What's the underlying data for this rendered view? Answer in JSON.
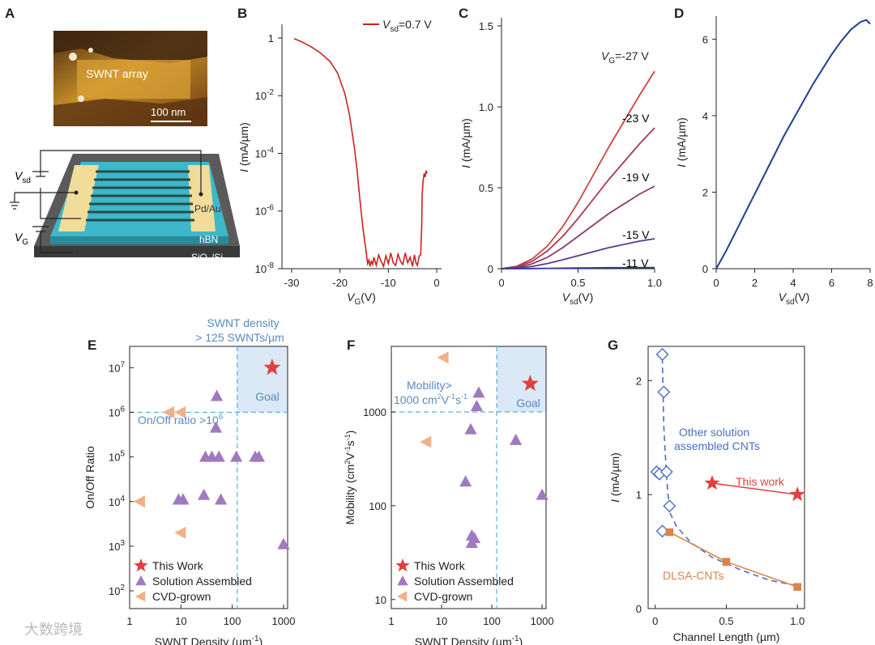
{
  "figure": {
    "panel_labels": [
      "A",
      "B",
      "C",
      "D",
      "E",
      "F",
      "G"
    ],
    "watermark": "大数跨境"
  },
  "panel_a": {
    "afm_label": "SWNT array",
    "scale_bar": "100 nm",
    "labels": {
      "vsd": "V",
      "vsd_sub": "sd",
      "vg": "V",
      "vg_sub": "G",
      "pdau": "Pd/Au",
      "hbn": "hBN",
      "sio2": "SiO",
      "sio2_sub": "2",
      "sio2_tail": "/Si"
    }
  },
  "chart_data": [
    {
      "panel": "B",
      "type": "line",
      "xlabel": "V",
      "xlabel_sub": "G",
      "xlabel_unit": "(V)",
      "ylabel": "I (mA/µm)",
      "scale_y": "log",
      "xlim": [
        -32,
        1
      ],
      "ylim": [
        1e-08,
        3
      ],
      "x_ticks": [
        "-30",
        "-20",
        "-10",
        "0"
      ],
      "y_ticks": [
        {
          "base": "1",
          "exp": ""
        },
        {
          "base": "10",
          "exp": "-2"
        },
        {
          "base": "10",
          "exp": "-4"
        },
        {
          "base": "10",
          "exp": "-6"
        },
        {
          "base": "10",
          "exp": "-8"
        }
      ],
      "legend": "V",
      "legend_sub": "sd",
      "legend_val": "=0.7 V",
      "color": "#cc2222",
      "x": [
        -29.5,
        -28,
        -26,
        -24,
        -22,
        -20.5,
        -19,
        -18,
        -17,
        -16.5,
        -16,
        -15.5,
        -15,
        -14.6,
        -14.3,
        -14,
        -13.8,
        -13.5,
        -13.2,
        -13,
        -12.5,
        -12,
        -11.5,
        -11,
        -10.5,
        -10,
        -9.5,
        -9,
        -8.5,
        -8,
        -7.5,
        -7,
        -6.5,
        -6,
        -5.5,
        -5,
        -4.6,
        -4.3,
        -4,
        -3.6,
        -3.3,
        -3.1,
        -3,
        -2.8,
        -2.6,
        -2.4,
        -2.2,
        -2
      ],
      "y": [
        0.95,
        0.75,
        0.5,
        0.3,
        0.15,
        0.06,
        0.012,
        0.002,
        0.00015,
        3e-05,
        4e-06,
        6e-07,
        1.2e-07,
        4e-08,
        1.5e-08,
        2e-08,
        1.2e-08,
        1.8e-08,
        1.4e-08,
        2.5e-08,
        1.3e-08,
        3e-08,
        1.8e-08,
        1.2e-08,
        2.8e-08,
        1.5e-08,
        3.5e-08,
        1.6e-08,
        1.3e-08,
        3.2e-08,
        1.8e-08,
        1.4e-08,
        3.5e-08,
        1.6e-08,
        2.5e-08,
        1.2e-08,
        3e-08,
        1.6e-08,
        1.3e-08,
        2.8e-08,
        3e-08,
        3e-07,
        4e-06,
        1.2e-05,
        2e-05,
        1.5e-05,
        2.5e-05,
        2e-05
      ]
    },
    {
      "panel": "C",
      "type": "line",
      "xlabel": "V",
      "xlabel_sub": "sd",
      "xlabel_unit": "(V)",
      "ylabel": "I (mA/µm)",
      "xlim": [
        0,
        1.0
      ],
      "ylim": [
        0,
        1.55
      ],
      "x_ticks": [
        "0",
        "0.5",
        "1.0"
      ],
      "y_ticks": [
        "0",
        "0.5",
        "1.0",
        "1.5"
      ],
      "x": [
        0,
        0.1,
        0.2,
        0.3,
        0.4,
        0.5,
        0.6,
        0.7,
        0.8,
        0.9,
        1.0
      ],
      "series": [
        {
          "name": "V",
          "name_sub": "G",
          "name_val": "=-27 V",
          "color": "#cc4444",
          "values": [
            0,
            0.015,
            0.06,
            0.14,
            0.26,
            0.41,
            0.58,
            0.75,
            0.91,
            1.07,
            1.22
          ]
        },
        {
          "name": "-23 V",
          "color": "#a83a55",
          "values": [
            0,
            0.012,
            0.045,
            0.11,
            0.2,
            0.31,
            0.43,
            0.55,
            0.66,
            0.77,
            0.87
          ]
        },
        {
          "name": "-19 V",
          "color": "#8a3a6e",
          "values": [
            0,
            0.008,
            0.03,
            0.07,
            0.13,
            0.2,
            0.27,
            0.34,
            0.4,
            0.46,
            0.51
          ]
        },
        {
          "name": "-15 V",
          "color": "#5c3a8c",
          "values": [
            0,
            0.004,
            0.014,
            0.032,
            0.055,
            0.08,
            0.105,
            0.13,
            0.15,
            0.17,
            0.185
          ]
        },
        {
          "name": "-11 V",
          "color": "#2a3a96",
          "values": [
            0,
            0,
            0.001,
            0.002,
            0.003,
            0.004,
            0.005,
            0.006,
            0.006,
            0.007,
            0.007
          ]
        }
      ]
    },
    {
      "panel": "D",
      "type": "line",
      "xlabel": "V",
      "xlabel_sub": "sd",
      "xlabel_unit": "(V)",
      "ylabel": "I (mA/µm)",
      "xlim": [
        0,
        8
      ],
      "ylim": [
        0,
        6.6
      ],
      "x_ticks": [
        "0",
        "2",
        "4",
        "6",
        "8"
      ],
      "y_ticks": [
        "0",
        "2",
        "4",
        "6"
      ],
      "color": "#1f3f8f",
      "x": [
        0,
        0.5,
        1,
        1.5,
        2,
        2.5,
        3,
        3.5,
        4,
        4.5,
        5,
        5.5,
        6,
        6.5,
        7,
        7.5,
        7.8,
        8
      ],
      "y": [
        0,
        0.45,
        0.95,
        1.45,
        1.95,
        2.45,
        2.95,
        3.45,
        3.9,
        4.35,
        4.8,
        5.2,
        5.6,
        5.95,
        6.25,
        6.45,
        6.5,
        6.4
      ]
    },
    {
      "panel": "E",
      "type": "scatter",
      "xlabel": "SWNT Density (µm",
      "xlabel_sup": "-1",
      "xlabel_tail": ")",
      "ylabel": "On/Off Ratio",
      "scale_x": "log",
      "scale_y": "log",
      "xlim": [
        1,
        1200
      ],
      "ylim": [
        40,
        30000000
      ],
      "x_ticks": [
        "1",
        "10",
        "100",
        "1000"
      ],
      "y_ticks": [
        {
          "base": "10",
          "exp": "2"
        },
        {
          "base": "10",
          "exp": "3"
        },
        {
          "base": "10",
          "exp": "4"
        },
        {
          "base": "10",
          "exp": "5"
        },
        {
          "base": "10",
          "exp": "6"
        },
        {
          "base": "10",
          "exp": "7"
        }
      ],
      "threshold_x": 125,
      "threshold_y": 1000000,
      "annotations": {
        "density": "SWNT density",
        "density2": "> 125 SWNTs/µm",
        "ratio": "On/Off ratio >10",
        "ratio_sup": "6",
        "goal": "Goal"
      },
      "series": [
        {
          "name": "This Work",
          "marker": "star",
          "color": "#e04040",
          "x": [
            600
          ],
          "y": [
            10000000
          ]
        },
        {
          "name": "Solution Assembled",
          "marker": "triangle-up",
          "color": "#a07ac0",
          "x": [
            50,
            48,
            30,
            40,
            55,
            120,
            280,
            330,
            9,
            11,
            28,
            60,
            1000
          ],
          "y": [
            2300000,
            450000,
            100000,
            100000,
            100000,
            100000,
            100000,
            100000,
            11000,
            11000,
            14000,
            11000,
            1100
          ]
        },
        {
          "name": "CVD-grown",
          "marker": "triangle-left",
          "color": "#f0b08a",
          "x": [
            6,
            10,
            1.6,
            10
          ],
          "y": [
            1000000,
            1000000,
            10000,
            2000
          ]
        }
      ]
    },
    {
      "panel": "F",
      "type": "scatter",
      "xlabel": "SWNT Density (µm",
      "xlabel_sup": "-1",
      "xlabel_tail": ")",
      "ylabel": "Mobility (cm",
      "scale_x": "log",
      "scale_y": "log",
      "xlim": [
        1,
        1200
      ],
      "ylim": [
        8,
        5000
      ],
      "x_ticks": [
        "1",
        "10",
        "100",
        "1000"
      ],
      "y_ticks": [
        "10",
        "100",
        "1000"
      ],
      "threshold_x": 125,
      "threshold_y": 1000,
      "annotations": {
        "mob1": "Mobility>",
        "mob2": "1000 cm",
        "goal": "Goal"
      },
      "series": [
        {
          "name": "This Work",
          "marker": "star",
          "color": "#e04040",
          "x": [
            580
          ],
          "y": [
            2000
          ]
        },
        {
          "name": "Solution Assembled",
          "marker": "triangle-up",
          "color": "#a07ac0",
          "x": [
            55,
            50,
            38,
            300,
            30,
            1000,
            40,
            40,
            45
          ],
          "y": [
            1600,
            1150,
            650,
            500,
            180,
            130,
            48,
            40,
            45
          ]
        },
        {
          "name": "CVD-grown",
          "marker": "triangle-left",
          "color": "#f0b08a",
          "x": [
            11,
            5
          ],
          "y": [
            3800,
            480
          ]
        }
      ]
    },
    {
      "panel": "G",
      "type": "line",
      "xlabel": "Channel Length (µm)",
      "ylabel": "I (mA/µm)",
      "xlim": [
        -0.05,
        1.05
      ],
      "ylim": [
        0,
        2.3
      ],
      "x_ticks": [
        "0",
        "0.5",
        "1.0"
      ],
      "y_ticks": [
        "0",
        "1",
        "2"
      ],
      "series": [
        {
          "name": "Other solution assembled CNTs",
          "marker": "diamond",
          "color": "#4a6ec8",
          "x": [
            0.05,
            0.06,
            0.01,
            0.03,
            0.08,
            0.1,
            0.05
          ],
          "y": [
            2.23,
            1.9,
            1.2,
            1.18,
            1.2,
            0.9,
            0.68
          ]
        },
        {
          "name": "This work",
          "marker": "star",
          "color": "#e04040",
          "x": [
            0.4,
            1.0
          ],
          "y": [
            1.1,
            1.0
          ]
        },
        {
          "name": "DLSA-CNTs",
          "marker": "square",
          "color": "#d9844a",
          "x": [
            0.1,
            0.5,
            1.0
          ],
          "y": [
            0.67,
            0.41,
            0.19
          ]
        }
      ],
      "labels": {
        "other1": "Other solution",
        "other2": "assembled CNTs",
        "this": "This work",
        "dlsa": "DLSA-CNTs"
      }
    }
  ]
}
